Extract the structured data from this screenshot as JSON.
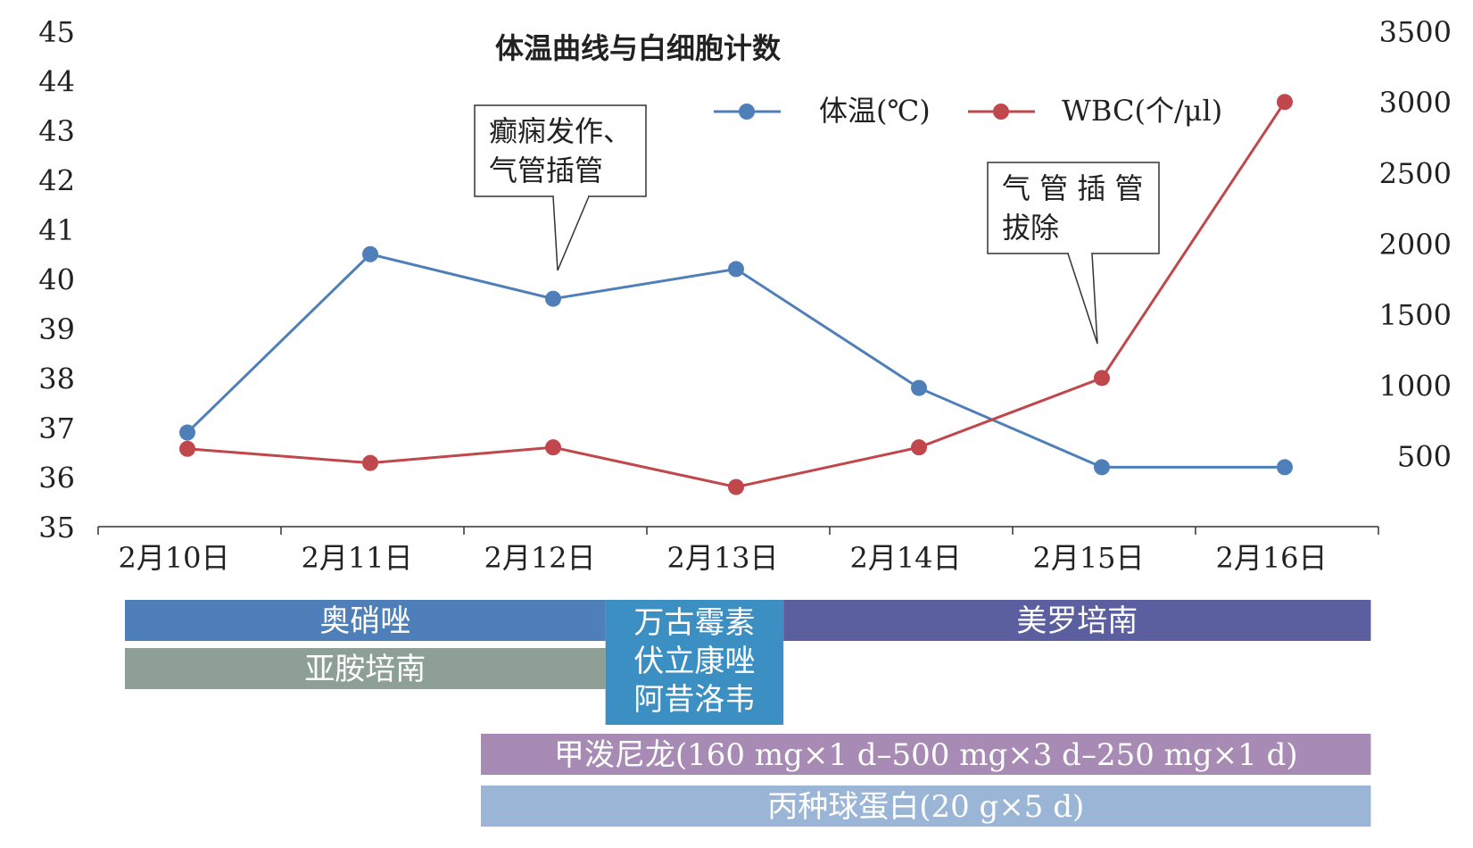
{
  "chart_data": {
    "type": "line",
    "title": "体温曲线与白细胞计数",
    "categories": [
      "2月10日",
      "2月11日",
      "2月12日",
      "2月13日",
      "2月14日",
      "2月15日",
      "2月16日"
    ],
    "series": [
      {
        "name": "体温(℃)",
        "axis": "left",
        "color": "#4f7fb9",
        "values": [
          36.9,
          40.5,
          39.6,
          40.2,
          37.8,
          36.2,
          36.2
        ]
      },
      {
        "name": "WBC(个/μl)",
        "axis": "right",
        "color": "#c0474b",
        "values": [
          550,
          450,
          560,
          280,
          560,
          1050,
          3000
        ]
      }
    ],
    "y_left": {
      "ylim": [
        35,
        45
      ],
      "ticks": [
        "35",
        "36",
        "37",
        "38",
        "39",
        "40",
        "41",
        "42",
        "43",
        "44",
        "45"
      ]
    },
    "y_right": {
      "ylim": [
        0,
        3500
      ],
      "ticks": [
        "500",
        "1000",
        "1500",
        "2000",
        "2500",
        "3000",
        "3500"
      ]
    },
    "legend_position": "top-right",
    "grid": false,
    "annotations": [
      {
        "lines": [
          "癫痫发作、",
          "气管插管"
        ],
        "category": "2月12日"
      },
      {
        "lines": [
          "气 管 插 管",
          "拔除"
        ],
        "category": "2月15日"
      }
    ],
    "drug_bars": [
      {
        "label": [
          "奥硝唑"
        ],
        "from": 0,
        "to": 2.7,
        "row": 0,
        "color": "#4e7fb9"
      },
      {
        "label": [
          "亚胺培南"
        ],
        "from": 0,
        "to": 2.7,
        "row": 1,
        "color": "#8ea095"
      },
      {
        "label": [
          "万古霉素",
          "伏立康唑",
          "阿昔洛韦"
        ],
        "from": 2.7,
        "to": 3.7,
        "row": 0,
        "rows": 3,
        "color": "#3b8fc2"
      },
      {
        "label": [
          "美罗培南"
        ],
        "from": 3.7,
        "to": 7.0,
        "row": 0,
        "color": "#5b5fa0"
      },
      {
        "label": [
          "甲泼尼龙(160 mg×1 d–500 mg×3 d–250 mg×1 d)"
        ],
        "from": 2.0,
        "to": 7.0,
        "row": 2,
        "color": "#a88bb5"
      },
      {
        "label": [
          "丙种球蛋白(20 g×5 d)"
        ],
        "from": 2.0,
        "to": 7.0,
        "row": 3,
        "color": "#9ab5d6"
      }
    ]
  }
}
